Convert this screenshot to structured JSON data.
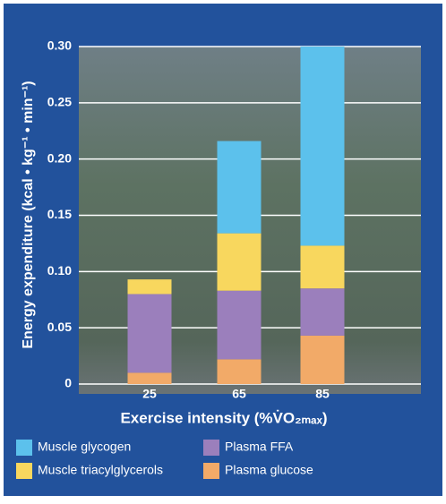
{
  "chart_data": {
    "type": "stacked_bar",
    "y_label": "Energy expenditure (kcal • kg⁻¹ • min⁻¹)",
    "x_label": "Exercise intensity (%V̇O₂ₘₐₓ)",
    "categories": [
      "25",
      "65",
      "85"
    ],
    "series": [
      {
        "name": "Plasma glucose",
        "color": "#f2aa68",
        "values": [
          0.01,
          0.022,
          0.043
        ]
      },
      {
        "name": "Plasma FFA",
        "color": "#9b7fbc",
        "values": [
          0.07,
          0.061,
          0.042
        ]
      },
      {
        "name": "Muscle triacylglycerols",
        "color": "#f8d75e",
        "values": [
          0.013,
          0.051,
          0.038
        ]
      },
      {
        "name": "Muscle glycogen",
        "color": "#5cc1ec",
        "values": [
          0,
          0.082,
          0.177
        ]
      }
    ],
    "ylim": [
      0,
      0.3
    ],
    "yticks": [
      0,
      0.05,
      {
        "value": 0.1,
        "label": "0.10"
      },
      0.15,
      {
        "value": 0.2,
        "label": "0.20"
      },
      0.25,
      {
        "value": 0.3,
        "label": "0.30"
      }
    ],
    "grid": true
  }
}
